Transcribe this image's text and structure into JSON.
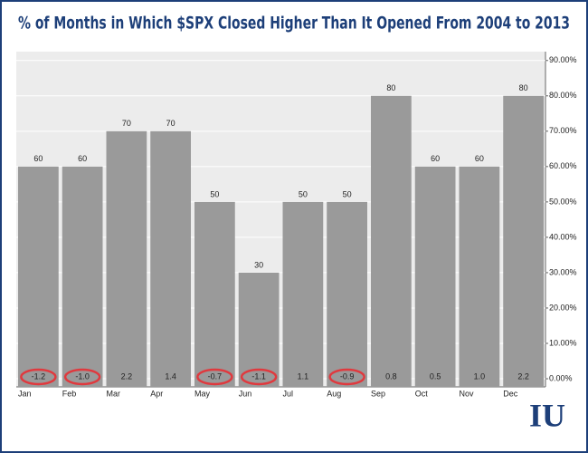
{
  "chart_data": {
    "type": "bar",
    "title": "% of  Months in Which $SPX Closed Higher Than It Opened From 2004 to 2013",
    "categories": [
      "Jan",
      "Feb",
      "Mar",
      "Apr",
      "May",
      "Jun",
      "Jul",
      "Aug",
      "Sep",
      "Oct",
      "Nov",
      "Dec"
    ],
    "values": [
      60,
      60,
      70,
      70,
      50,
      30,
      50,
      50,
      80,
      60,
      60,
      80
    ],
    "color": "#9a9a9a",
    "bottom_values": [
      -1.2,
      -1.0,
      2.2,
      1.4,
      -0.7,
      -1.1,
      1.1,
      -0.9,
      0.8,
      0.5,
      1.0,
      2.2
    ],
    "bottom_value_labels": [
      "-1.2",
      "-1.0",
      "2.2",
      "1.4",
      "-0.7",
      "-1.1",
      "1.1",
      "-0.9",
      "0.8",
      "0.5",
      "1.0",
      "2.2"
    ],
    "highlight_color": "#e0393e",
    "ylim": [
      -2.3,
      92.5
    ],
    "yticks": [
      {
        "value": 0,
        "label": "0.00%"
      },
      {
        "value": 10,
        "label": "10.00%"
      },
      {
        "value": 20,
        "label": "20.00%"
      },
      {
        "value": 30,
        "label": "30.00%"
      },
      {
        "value": 40,
        "label": "40.00%"
      },
      {
        "value": 50,
        "label": "50.00%"
      },
      {
        "value": 60,
        "label": "60.00%"
      },
      {
        "value": 70,
        "label": "70.00%"
      },
      {
        "value": 80,
        "label": "80.00%"
      },
      {
        "value": 90,
        "label": "90.00%"
      }
    ],
    "grid": true,
    "logo": "IU"
  }
}
